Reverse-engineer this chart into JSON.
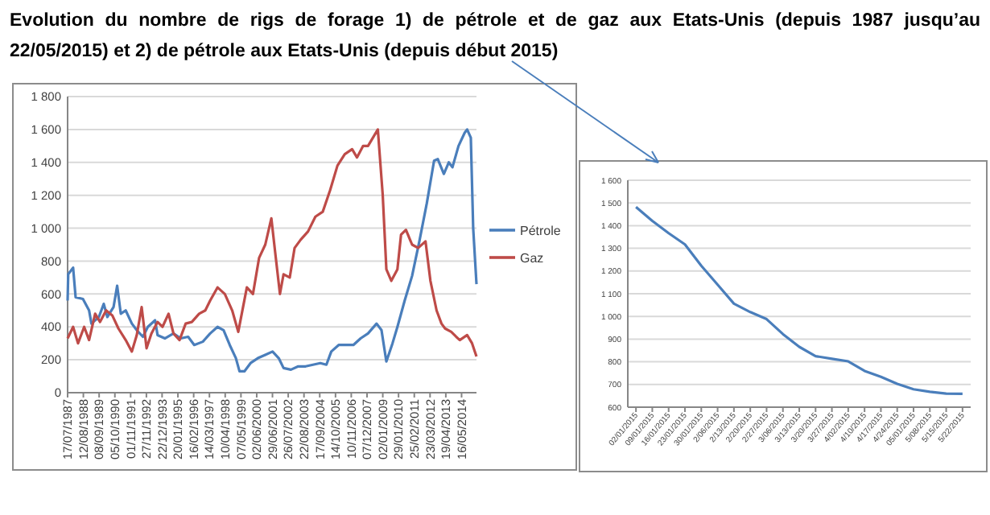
{
  "chart_data": [
    {
      "type": "line",
      "title": "Evolution du nombre de rigs de forage 1) de pétrole et de gaz aux Etats-Unis (depuis 1987 jusqu’au 22/05/2015) et 2) de pétrole aux Etats-Unis (depuis début 2015)",
      "xlim": [
        "1987-07-17",
        "2015-05-22"
      ],
      "xticks": [
        {
          "value": "1987-07-17",
          "label": "17/07/1987"
        },
        {
          "value": "1988-08-12",
          "label": "12/08/1988"
        },
        {
          "value": "1989-09-08",
          "label": "08/09/1989"
        },
        {
          "value": "1990-10-05",
          "label": "05/10/1990"
        },
        {
          "value": "1991-11-01",
          "label": "01/11/1991"
        },
        {
          "value": "1992-11-27",
          "label": "27/11/1992"
        },
        {
          "value": "1993-12-22",
          "label": "22/12/1993"
        },
        {
          "value": "1995-01-20",
          "label": "20/01/1995"
        },
        {
          "value": "1996-02-16",
          "label": "16/02/1996"
        },
        {
          "value": "1997-03-14",
          "label": "14/03/1997"
        },
        {
          "value": "1998-04-10",
          "label": "10/04/1998"
        },
        {
          "value": "1999-05-07",
          "label": "07/05/1999"
        },
        {
          "value": "2000-06-02",
          "label": "02/06/2000"
        },
        {
          "value": "2001-06-29",
          "label": "29/06/2001"
        },
        {
          "value": "2002-07-26",
          "label": "26/07/2002"
        },
        {
          "value": "2003-08-22",
          "label": "22/08/2003"
        },
        {
          "value": "2004-09-17",
          "label": "17/09/2004"
        },
        {
          "value": "2005-10-14",
          "label": "14/10/2005"
        },
        {
          "value": "2006-11-10",
          "label": "10/11/2006"
        },
        {
          "value": "2007-12-07",
          "label": "07/12/2007"
        },
        {
          "value": "2009-01-02",
          "label": "02/01/2009"
        },
        {
          "value": "2010-01-29",
          "label": "29/01/2010"
        },
        {
          "value": "2011-02-25",
          "label": "25/02/2011"
        },
        {
          "value": "2012-03-23",
          "label": "23/03/2012"
        },
        {
          "value": "2013-04-19",
          "label": "19/04/2013"
        },
        {
          "value": "2014-05-16",
          "label": "16/05/2014"
        }
      ],
      "ylim": [
        0,
        1800
      ],
      "yticks": [
        0,
        200,
        400,
        600,
        800,
        {
          "value": 1000,
          "label": "1 000"
        },
        {
          "value": 1200,
          "label": "1 200"
        },
        {
          "value": 1400,
          "label": "1 400"
        },
        {
          "value": 1600,
          "label": "1 600"
        },
        {
          "value": 1800,
          "label": "1 800"
        }
      ],
      "grid": "y",
      "legend": "right",
      "series": [
        {
          "name": "Pétrole",
          "color": "#4a7ebb",
          "x": [
            "1987-07-17",
            "1987-08",
            "1987-12",
            "1988-02",
            "1988-08",
            "1989-01",
            "1989-03",
            "1989-09",
            "1990-01",
            "1990-04",
            "1990-09",
            "1990-12",
            "1991-03",
            "1991-07",
            "1991-12",
            "1992-04",
            "1992-09",
            "1993-01",
            "1993-07",
            "1993-09",
            "1994-03",
            "1994-10",
            "1995-04",
            "1995-10",
            "1996-03",
            "1996-10",
            "1997-04",
            "1997-10",
            "1998-03",
            "1998-08",
            "1999-01",
            "1999-04",
            "1999-08",
            "2000-01",
            "2000-07",
            "2001-01",
            "2001-07",
            "2001-12",
            "2002-04",
            "2002-10",
            "2003-04",
            "2003-10",
            "2004-04",
            "2004-10",
            "2005-03",
            "2005-07",
            "2006-01",
            "2006-07",
            "2007-01",
            "2007-07",
            "2008-01",
            "2008-08",
            "2008-12",
            "2009-04",
            "2009-09",
            "2010-01",
            "2010-07",
            "2011-01",
            "2011-07",
            "2012-01",
            "2012-07",
            "2012-10",
            "2013-03",
            "2013-07",
            "2013-10",
            "2014-03",
            "2014-08",
            "2014-10",
            "2015-01",
            "2015-03",
            "2015-05-22"
          ],
          "values": [
            560,
            720,
            760,
            580,
            570,
            500,
            420,
            460,
            540,
            460,
            520,
            650,
            480,
            500,
            420,
            380,
            340,
            400,
            440,
            350,
            330,
            360,
            330,
            340,
            290,
            310,
            360,
            400,
            380,
            290,
            210,
            130,
            130,
            180,
            210,
            230,
            250,
            210,
            150,
            140,
            160,
            160,
            170,
            180,
            170,
            250,
            290,
            290,
            290,
            330,
            360,
            420,
            380,
            190,
            300,
            400,
            560,
            710,
            920,
            1150,
            1410,
            1420,
            1330,
            1400,
            1370,
            1500,
            1580,
            1600,
            1550,
            1000,
            660
          ]
        },
        {
          "name": "Gaz",
          "color": "#be4b48",
          "x": [
            "1987-07-17",
            "1987-12",
            "1988-04",
            "1988-09",
            "1989-01",
            "1989-06",
            "1989-10",
            "1990-03",
            "1990-08",
            "1991-01",
            "1991-07",
            "1991-12",
            "1992-04",
            "1992-08",
            "1992-12",
            "1993-04",
            "1993-09",
            "1994-01",
            "1994-06",
            "1994-10",
            "1995-03",
            "1995-08",
            "1996-01",
            "1996-07",
            "1996-12",
            "1997-04",
            "1997-10",
            "1998-04",
            "1998-10",
            "1999-03",
            "1999-10",
            "2000-03",
            "2000-08",
            "2001-01",
            "2001-06",
            "2001-09",
            "2002-01",
            "2002-04",
            "2002-09",
            "2003-01",
            "2003-06",
            "2003-12",
            "2004-06",
            "2004-12",
            "2005-06",
            "2005-12",
            "2006-06",
            "2006-12",
            "2007-04",
            "2007-09",
            "2008-01",
            "2008-09",
            "2009-01",
            "2009-04",
            "2009-08",
            "2010-01",
            "2010-04",
            "2010-08",
            "2011-01",
            "2011-06",
            "2011-12",
            "2012-04",
            "2012-09",
            "2013-01",
            "2013-04",
            "2013-09",
            "2014-01",
            "2014-04",
            "2014-10",
            "2015-02",
            "2015-05-22"
          ],
          "values": [
            330,
            400,
            300,
            400,
            320,
            480,
            430,
            500,
            470,
            390,
            320,
            250,
            350,
            520,
            270,
            360,
            430,
            400,
            480,
            360,
            320,
            420,
            430,
            480,
            500,
            560,
            640,
            600,
            500,
            370,
            640,
            600,
            820,
            900,
            1060,
            860,
            600,
            720,
            700,
            880,
            930,
            980,
            1070,
            1100,
            1230,
            1380,
            1450,
            1480,
            1430,
            1500,
            1500,
            1600,
            1200,
            750,
            680,
            750,
            960,
            990,
            900,
            880,
            920,
            680,
            500,
            420,
            390,
            370,
            340,
            320,
            350,
            300,
            220
          ]
        }
      ]
    },
    {
      "type": "line",
      "categories": [
        "02/01/2015",
        "09/01/2015",
        "16/01/2015",
        "23/01/2015",
        "30/01/2015",
        "2/06/2015",
        "2/13/2015",
        "2/20/2015",
        "2/27/2015",
        "3/06/2015",
        "3/13/2015",
        "3/20/2015",
        "3/27/2015",
        "4/02/2015",
        "4/10/2015",
        "4/17/2015",
        "4/24/2015",
        "05/01/2015",
        "5/08/2015",
        "5/15/2015",
        "5/22/2015"
      ],
      "ylim": [
        600,
        1600
      ],
      "yticks": [
        600,
        700,
        800,
        900,
        {
          "value": 1000,
          "label": "1 000"
        },
        {
          "value": 1100,
          "label": "1 100"
        },
        {
          "value": 1200,
          "label": "1 200"
        },
        {
          "value": 1300,
          "label": "1 300"
        },
        {
          "value": 1400,
          "label": "1 400"
        },
        {
          "value": 1500,
          "label": "1 500"
        },
        {
          "value": 1600,
          "label": "1 600"
        }
      ],
      "grid": "y",
      "series": [
        {
          "color": "#4a7ebb",
          "values": [
            1482,
            1421,
            1367,
            1317,
            1223,
            1140,
            1056,
            1019,
            988,
            922,
            866,
            825,
            813,
            802,
            760,
            734,
            703,
            679,
            668,
            660,
            659
          ]
        }
      ]
    }
  ]
}
